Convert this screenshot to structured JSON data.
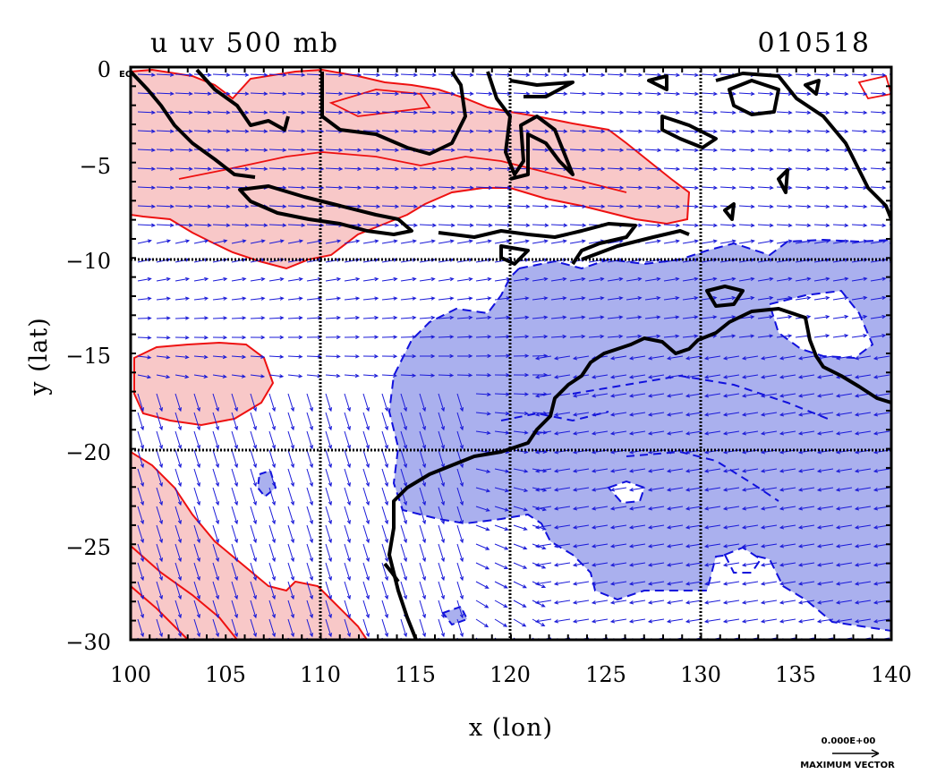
{
  "plot": {
    "title_left": "u uv 500 mb",
    "title_right": "010518",
    "xlabel": "x (lon)",
    "ylabel": "y (lat)",
    "eq_marker": "EQ",
    "x_ticks": [
      "100",
      "105",
      "110",
      "115",
      "120",
      "125",
      "130",
      "135",
      "140"
    ],
    "y_ticks": [
      "0",
      "−5",
      "−10",
      "−15",
      "−20",
      "−25",
      "−30"
    ],
    "xlim": [
      100,
      140
    ],
    "ylim": [
      -30,
      0
    ],
    "grid_lines_lon": [
      110,
      120,
      130
    ],
    "grid_lines_lat": [
      -10,
      -20
    ],
    "reference_vector": {
      "value": "0.000E+00",
      "label": "MAXIMUM VECTOR"
    }
  },
  "colors": {
    "positive_fill": "#f8c8c8",
    "positive_line": "#ee1111",
    "negative_fill": "#aab0ee",
    "negative_line": "#1111dd",
    "vectors": "#1a1ad8",
    "coastline": "#000000",
    "grid": "#000000"
  }
}
